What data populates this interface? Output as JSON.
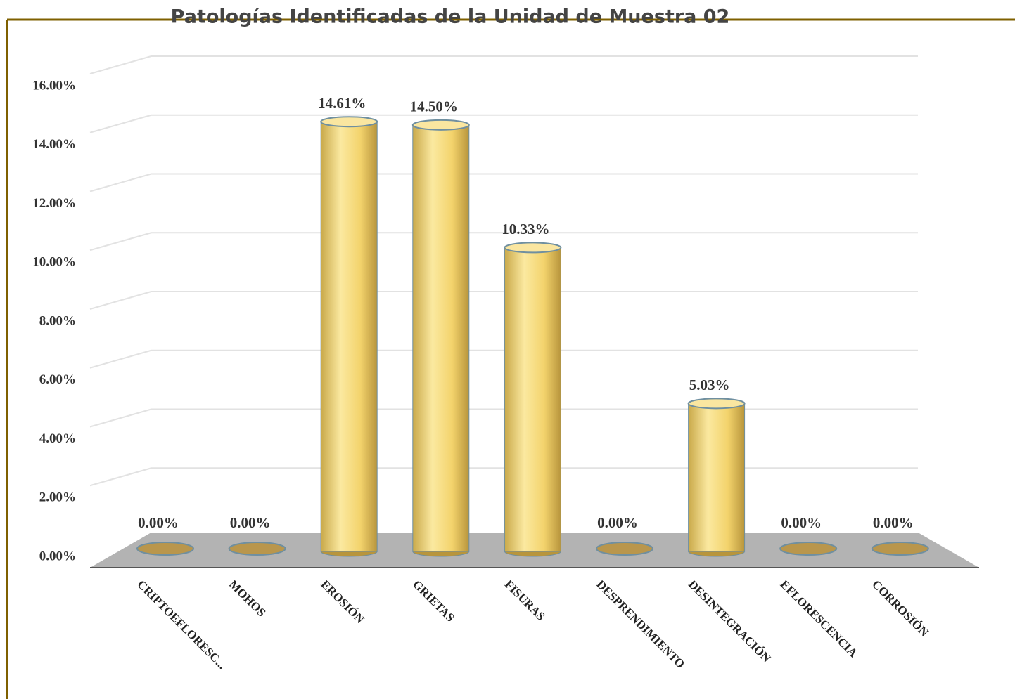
{
  "chart_data": {
    "type": "bar",
    "title": "Patologías Identificadas de la Unidad de Muestra 02",
    "categories": [
      "CRIPTOEFLORESC...",
      "MOHOS",
      "EROSIÓN",
      "GRIETAS",
      "FISURAS",
      "DESPRENDIMIENTO",
      "DESINTEGRACIÓN",
      "EFLORESCENCIA",
      "CORROSIÓN"
    ],
    "values": [
      0,
      0,
      14.61,
      14.5,
      10.33,
      0,
      5.03,
      0,
      0
    ],
    "value_labels": [
      "0.00%",
      "0.00%",
      "14.61%",
      "14.50%",
      "10.33%",
      "0.00%",
      "5.03%",
      "0.00%",
      "0.00%"
    ],
    "color": "#f5d878",
    "ylim": [
      0,
      16
    ],
    "yticks": [
      {
        "value": 0,
        "label": "0.00%"
      },
      {
        "value": 2,
        "label": "2.00%"
      },
      {
        "value": 4,
        "label": "4.00%"
      },
      {
        "value": 6,
        "label": "6.00%"
      },
      {
        "value": 8,
        "label": "8.00%"
      },
      {
        "value": 10,
        "label": "10.00%"
      },
      {
        "value": 12,
        "label": "12.00%"
      },
      {
        "value": 14,
        "label": "14.00%"
      },
      {
        "value": 16,
        "label": "16.00%"
      }
    ],
    "grid": true
  }
}
